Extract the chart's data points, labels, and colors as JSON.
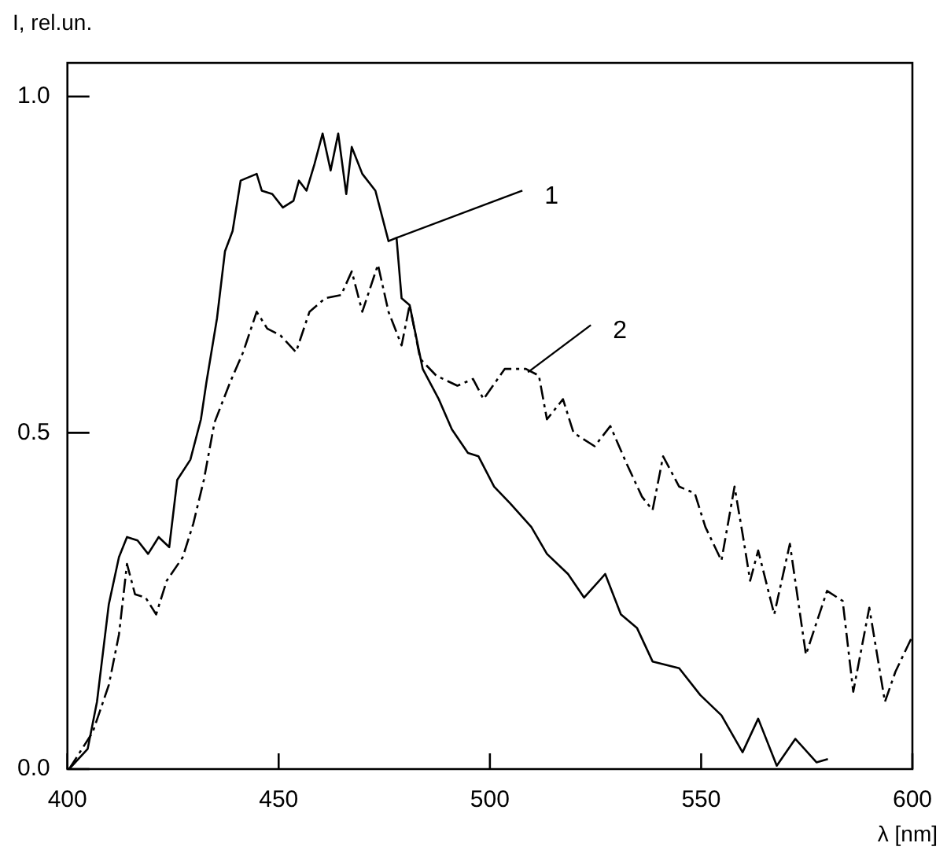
{
  "chart_data": {
    "type": "line",
    "xlabel": "λ [nm]",
    "ylabel": "I, rel.un.",
    "xlim": [
      400,
      600
    ],
    "xticks": [
      400,
      450,
      500,
      550,
      600
    ],
    "ylim": [
      0,
      1.05
    ],
    "yticks": [
      {
        "value": 0,
        "label": "0.0"
      },
      {
        "value": 0.5,
        "label": "0.5"
      },
      {
        "value": 1,
        "label": "1.0"
      }
    ],
    "marker": "none",
    "series": [
      {
        "color": "#000000",
        "line_style": "solid",
        "x": [
          400.4,
          404.8,
          407,
          409.8,
          412.2,
          414.1,
          416.6,
          419.1,
          421.6,
          424.1,
          426,
          429.1,
          431.6,
          432.9,
          435.4,
          437.3,
          439.1,
          441,
          442.9,
          444.8,
          446,
          448.5,
          451,
          453.5,
          454.8,
          456.6,
          458.5,
          460.4,
          462.3,
          464.1,
          466,
          467.3,
          469.8,
          472.9,
          476,
          477.9,
          479.1,
          481,
          484.1,
          487.9,
          491,
          494.8,
          497.3,
          501,
          504.8,
          509.8,
          513.5,
          518.5,
          522.3,
          527.3,
          531,
          534.8,
          538.5,
          544.8,
          549.8,
          554.8,
          559.8,
          563.5,
          567.9,
          572.3,
          577.3,
          580
        ],
        "values": [
          0,
          0.03,
          0.1,
          0.245,
          0.315,
          0.345,
          0.34,
          0.32,
          0.345,
          0.33,
          0.43,
          0.46,
          0.52,
          0.575,
          0.67,
          0.77,
          0.8,
          0.875,
          0.88,
          0.885,
          0.86,
          0.855,
          0.835,
          0.845,
          0.875,
          0.86,
          0.9,
          0.945,
          0.89,
          0.945,
          0.855,
          0.925,
          0.885,
          0.86,
          0.785,
          0.79,
          0.7,
          0.69,
          0.595,
          0.55,
          0.505,
          0.47,
          0.465,
          0.42,
          0.395,
          0.36,
          0.32,
          0.29,
          0.255,
          0.29,
          0.23,
          0.21,
          0.16,
          0.15,
          0.11,
          0.08,
          0.025,
          0.075,
          0.005,
          0.045,
          0.01,
          0.015
        ]
      },
      {
        "color": "#000000",
        "line_style": "dashed",
        "x": [
          400.4,
          406,
          409.8,
          412.2,
          414.1,
          416,
          418.5,
          421,
          423.5,
          427.3,
          429.8,
          432.3,
          434.8,
          438.5,
          441.6,
          444.8,
          447.3,
          450.4,
          454.1,
          457.3,
          461,
          464.8,
          467.3,
          469.8,
          473.5,
          476,
          479.1,
          481,
          483.5,
          487.3,
          492.3,
          496,
          498.5,
          503.5,
          508.5,
          511.6,
          513.5,
          517.3,
          519.8,
          524.8,
          528.5,
          532.3,
          536,
          538.5,
          541,
          544.8,
          548.5,
          551,
          554.8,
          557.9,
          559.8,
          561.6,
          563.5,
          567.3,
          571,
          574.8,
          579.8,
          583.5,
          586,
          589.8,
          593.5,
          596,
          599.8
        ],
        "values": [
          0,
          0.055,
          0.125,
          0.2,
          0.305,
          0.26,
          0.255,
          0.23,
          0.28,
          0.315,
          0.365,
          0.43,
          0.515,
          0.575,
          0.62,
          0.68,
          0.655,
          0.645,
          0.62,
          0.68,
          0.7,
          0.705,
          0.74,
          0.68,
          0.75,
          0.68,
          0.63,
          0.69,
          0.61,
          0.585,
          0.57,
          0.58,
          0.55,
          0.595,
          0.595,
          0.585,
          0.52,
          0.55,
          0.5,
          0.48,
          0.51,
          0.455,
          0.405,
          0.385,
          0.465,
          0.42,
          0.41,
          0.36,
          0.31,
          0.42,
          0.35,
          0.28,
          0.325,
          0.23,
          0.335,
          0.17,
          0.265,
          0.25,
          0.115,
          0.24,
          0.1,
          0.145,
          0.195
        ]
      }
    ],
    "annotations": [
      {
        "text": "1",
        "x": 477.9,
        "y": 0.79
      },
      {
        "text": "2",
        "x": 509,
        "y": 0.59
      }
    ]
  }
}
